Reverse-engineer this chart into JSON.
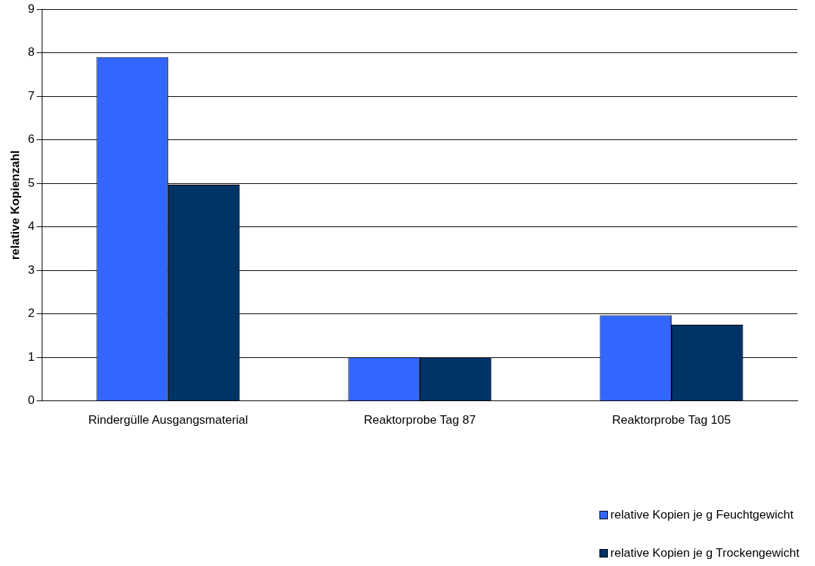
{
  "chart_data": {
    "type": "bar",
    "ylabel": "relative Kopienzahl",
    "categories": [
      "Rindergülle Ausgangsmaterial",
      "Reaktorprobe Tag 87",
      "Reaktorprobe Tag 105"
    ],
    "series": [
      {
        "name": "relative Kopien je g Feuchtgewicht",
        "color": "#3366ff",
        "values": [
          7.9,
          1.0,
          1.97
        ]
      },
      {
        "name": "relative Kopien je g Trockengewicht",
        "color": "#003366",
        "values": [
          4.97,
          1.0,
          1.75
        ]
      }
    ],
    "ylim": [
      0,
      9
    ],
    "yticks": [
      0,
      1,
      2,
      3,
      4,
      5,
      6,
      7,
      8,
      9
    ],
    "grid": "y",
    "legend": "bottom right"
  }
}
